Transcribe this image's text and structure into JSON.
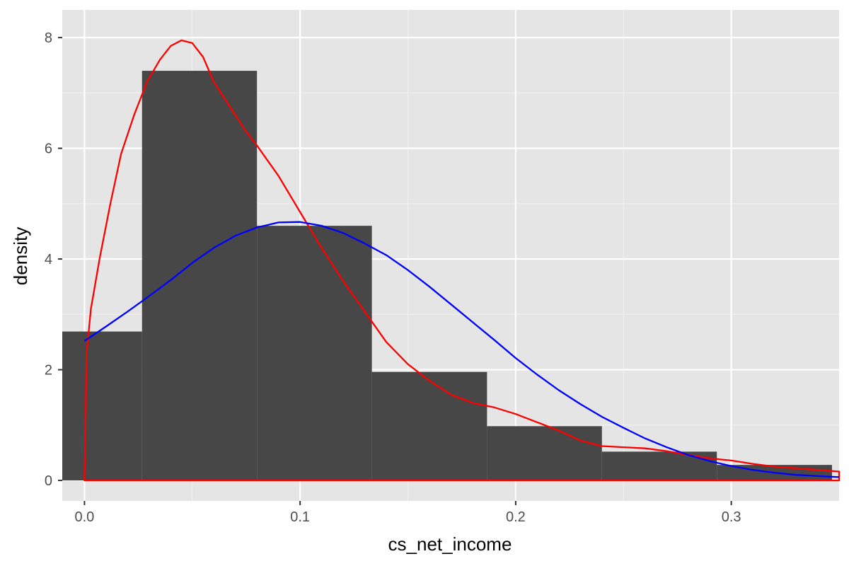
{
  "chart_data": {
    "type": "bar",
    "title": "",
    "xlabel": "cs_net_income",
    "ylabel": "density",
    "xlim": [
      -0.0103,
      0.35
    ],
    "ylim": [
      -0.37,
      8.5
    ],
    "grid": true,
    "legend": "none",
    "x_ticks": [
      {
        "value": 0.0,
        "label": "0.0"
      },
      {
        "value": 0.1,
        "label": "0.1"
      },
      {
        "value": 0.2,
        "label": "0.2"
      },
      {
        "value": 0.3,
        "label": "0.3"
      }
    ],
    "y_ticks": [
      {
        "value": 0,
        "label": "0"
      },
      {
        "value": 2,
        "label": "2"
      },
      {
        "value": 4,
        "label": "4"
      },
      {
        "value": 6,
        "label": "6"
      },
      {
        "value": 8,
        "label": "8"
      }
    ],
    "histogram": {
      "bins": [
        {
          "x0": -0.0267,
          "x1": 0.0267,
          "density": 2.69
        },
        {
          "x0": 0.0267,
          "x1": 0.08,
          "density": 7.4
        },
        {
          "x0": 0.08,
          "x1": 0.1333,
          "density": 4.6
        },
        {
          "x0": 0.1333,
          "x1": 0.1867,
          "density": 1.96
        },
        {
          "x0": 0.1867,
          "x1": 0.24,
          "density": 0.98
        },
        {
          "x0": 0.24,
          "x1": 0.2933,
          "density": 0.52
        },
        {
          "x0": 0.2933,
          "x1": 0.3467,
          "density": 0.28
        }
      ]
    },
    "series": [
      {
        "type": "area",
        "points": [
          [
            0.0,
            0.0
          ],
          [
            0.0003,
            0.6
          ],
          [
            0.0007,
            1.6
          ],
          [
            0.001,
            2.3
          ],
          [
            0.003,
            3.1
          ],
          [
            0.007,
            4.0
          ],
          [
            0.012,
            5.0
          ],
          [
            0.017,
            5.9
          ],
          [
            0.023,
            6.6
          ],
          [
            0.029,
            7.2
          ],
          [
            0.035,
            7.6
          ],
          [
            0.04,
            7.85
          ],
          [
            0.045,
            7.95
          ],
          [
            0.05,
            7.9
          ],
          [
            0.055,
            7.65
          ],
          [
            0.06,
            7.2
          ],
          [
            0.065,
            6.9
          ],
          [
            0.07,
            6.6
          ],
          [
            0.075,
            6.3
          ],
          [
            0.08,
            6.05
          ],
          [
            0.09,
            5.5
          ],
          [
            0.1,
            4.85
          ],
          [
            0.11,
            4.2
          ],
          [
            0.12,
            3.6
          ],
          [
            0.13,
            3.05
          ],
          [
            0.14,
            2.5
          ],
          [
            0.15,
            2.1
          ],
          [
            0.16,
            1.8
          ],
          [
            0.17,
            1.55
          ],
          [
            0.18,
            1.4
          ],
          [
            0.19,
            1.32
          ],
          [
            0.2,
            1.2
          ],
          [
            0.21,
            1.05
          ],
          [
            0.22,
            0.9
          ],
          [
            0.23,
            0.72
          ],
          [
            0.24,
            0.62
          ],
          [
            0.25,
            0.6
          ],
          [
            0.26,
            0.58
          ],
          [
            0.27,
            0.53
          ],
          [
            0.28,
            0.46
          ],
          [
            0.29,
            0.4
          ],
          [
            0.3,
            0.36
          ],
          [
            0.31,
            0.3
          ],
          [
            0.32,
            0.25
          ],
          [
            0.33,
            0.22
          ],
          [
            0.34,
            0.19
          ],
          [
            0.35,
            0.16
          ],
          [
            0.35,
            0.0
          ]
        ],
        "color": "#ff0000"
      },
      {
        "type": "line",
        "points": [
          [
            0.0,
            2.52
          ],
          [
            0.01,
            2.78
          ],
          [
            0.02,
            3.05
          ],
          [
            0.03,
            3.33
          ],
          [
            0.04,
            3.62
          ],
          [
            0.05,
            3.93
          ],
          [
            0.06,
            4.2
          ],
          [
            0.07,
            4.42
          ],
          [
            0.08,
            4.57
          ],
          [
            0.09,
            4.66
          ],
          [
            0.1,
            4.67
          ],
          [
            0.11,
            4.6
          ],
          [
            0.12,
            4.47
          ],
          [
            0.13,
            4.28
          ],
          [
            0.14,
            4.07
          ],
          [
            0.15,
            3.8
          ],
          [
            0.16,
            3.5
          ],
          [
            0.17,
            3.18
          ],
          [
            0.18,
            2.86
          ],
          [
            0.19,
            2.54
          ],
          [
            0.2,
            2.21
          ],
          [
            0.21,
            1.91
          ],
          [
            0.22,
            1.63
          ],
          [
            0.23,
            1.38
          ],
          [
            0.24,
            1.15
          ],
          [
            0.25,
            0.95
          ],
          [
            0.26,
            0.76
          ],
          [
            0.27,
            0.6
          ],
          [
            0.28,
            0.46
          ],
          [
            0.29,
            0.35
          ],
          [
            0.3,
            0.26
          ],
          [
            0.31,
            0.19
          ],
          [
            0.32,
            0.14
          ],
          [
            0.33,
            0.1
          ],
          [
            0.34,
            0.08
          ],
          [
            0.35,
            0.06
          ]
        ],
        "color": "#0000ff"
      }
    ],
    "colors": {
      "panel_background": "#e5e5e5",
      "grid_major": "#ffffff",
      "grid_minor": "#f2f2f2",
      "bar_fill": "#474747",
      "tick_label": "#4d4d4d",
      "tick_mark": "#333333"
    }
  }
}
